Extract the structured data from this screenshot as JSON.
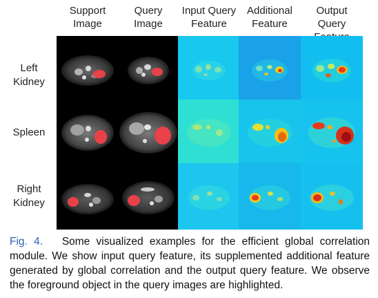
{
  "columns": [
    {
      "line1": "Support",
      "line2": "Image"
    },
    {
      "line1": "Query",
      "line2": "Image"
    },
    {
      "line1": "Input Query",
      "line2": "Feature"
    },
    {
      "line1": "Additional",
      "line2": "Feature"
    },
    {
      "line1": "Output Query",
      "line2": "Feature"
    }
  ],
  "rows": [
    {
      "line1": "Left",
      "line2": "Kidney"
    },
    {
      "line1": "Spleen",
      "line2": ""
    },
    {
      "line1": "Right",
      "line2": "Kidney"
    }
  ],
  "caption": {
    "figure_label": "Fig. 4.",
    "text": "Some visualized examples for the efficient global correlation module. We show input query feature, its supplemented additional feature generated by global correlation and the output query feature. We observe the foreground object in the query images are highlighted."
  },
  "colors": {
    "ct_background": "#000000",
    "mask": "#e8414a",
    "feature_background": "#19c8ee",
    "feature_hot": "#e83a1a",
    "caption_label": "#2f5fb5"
  }
}
